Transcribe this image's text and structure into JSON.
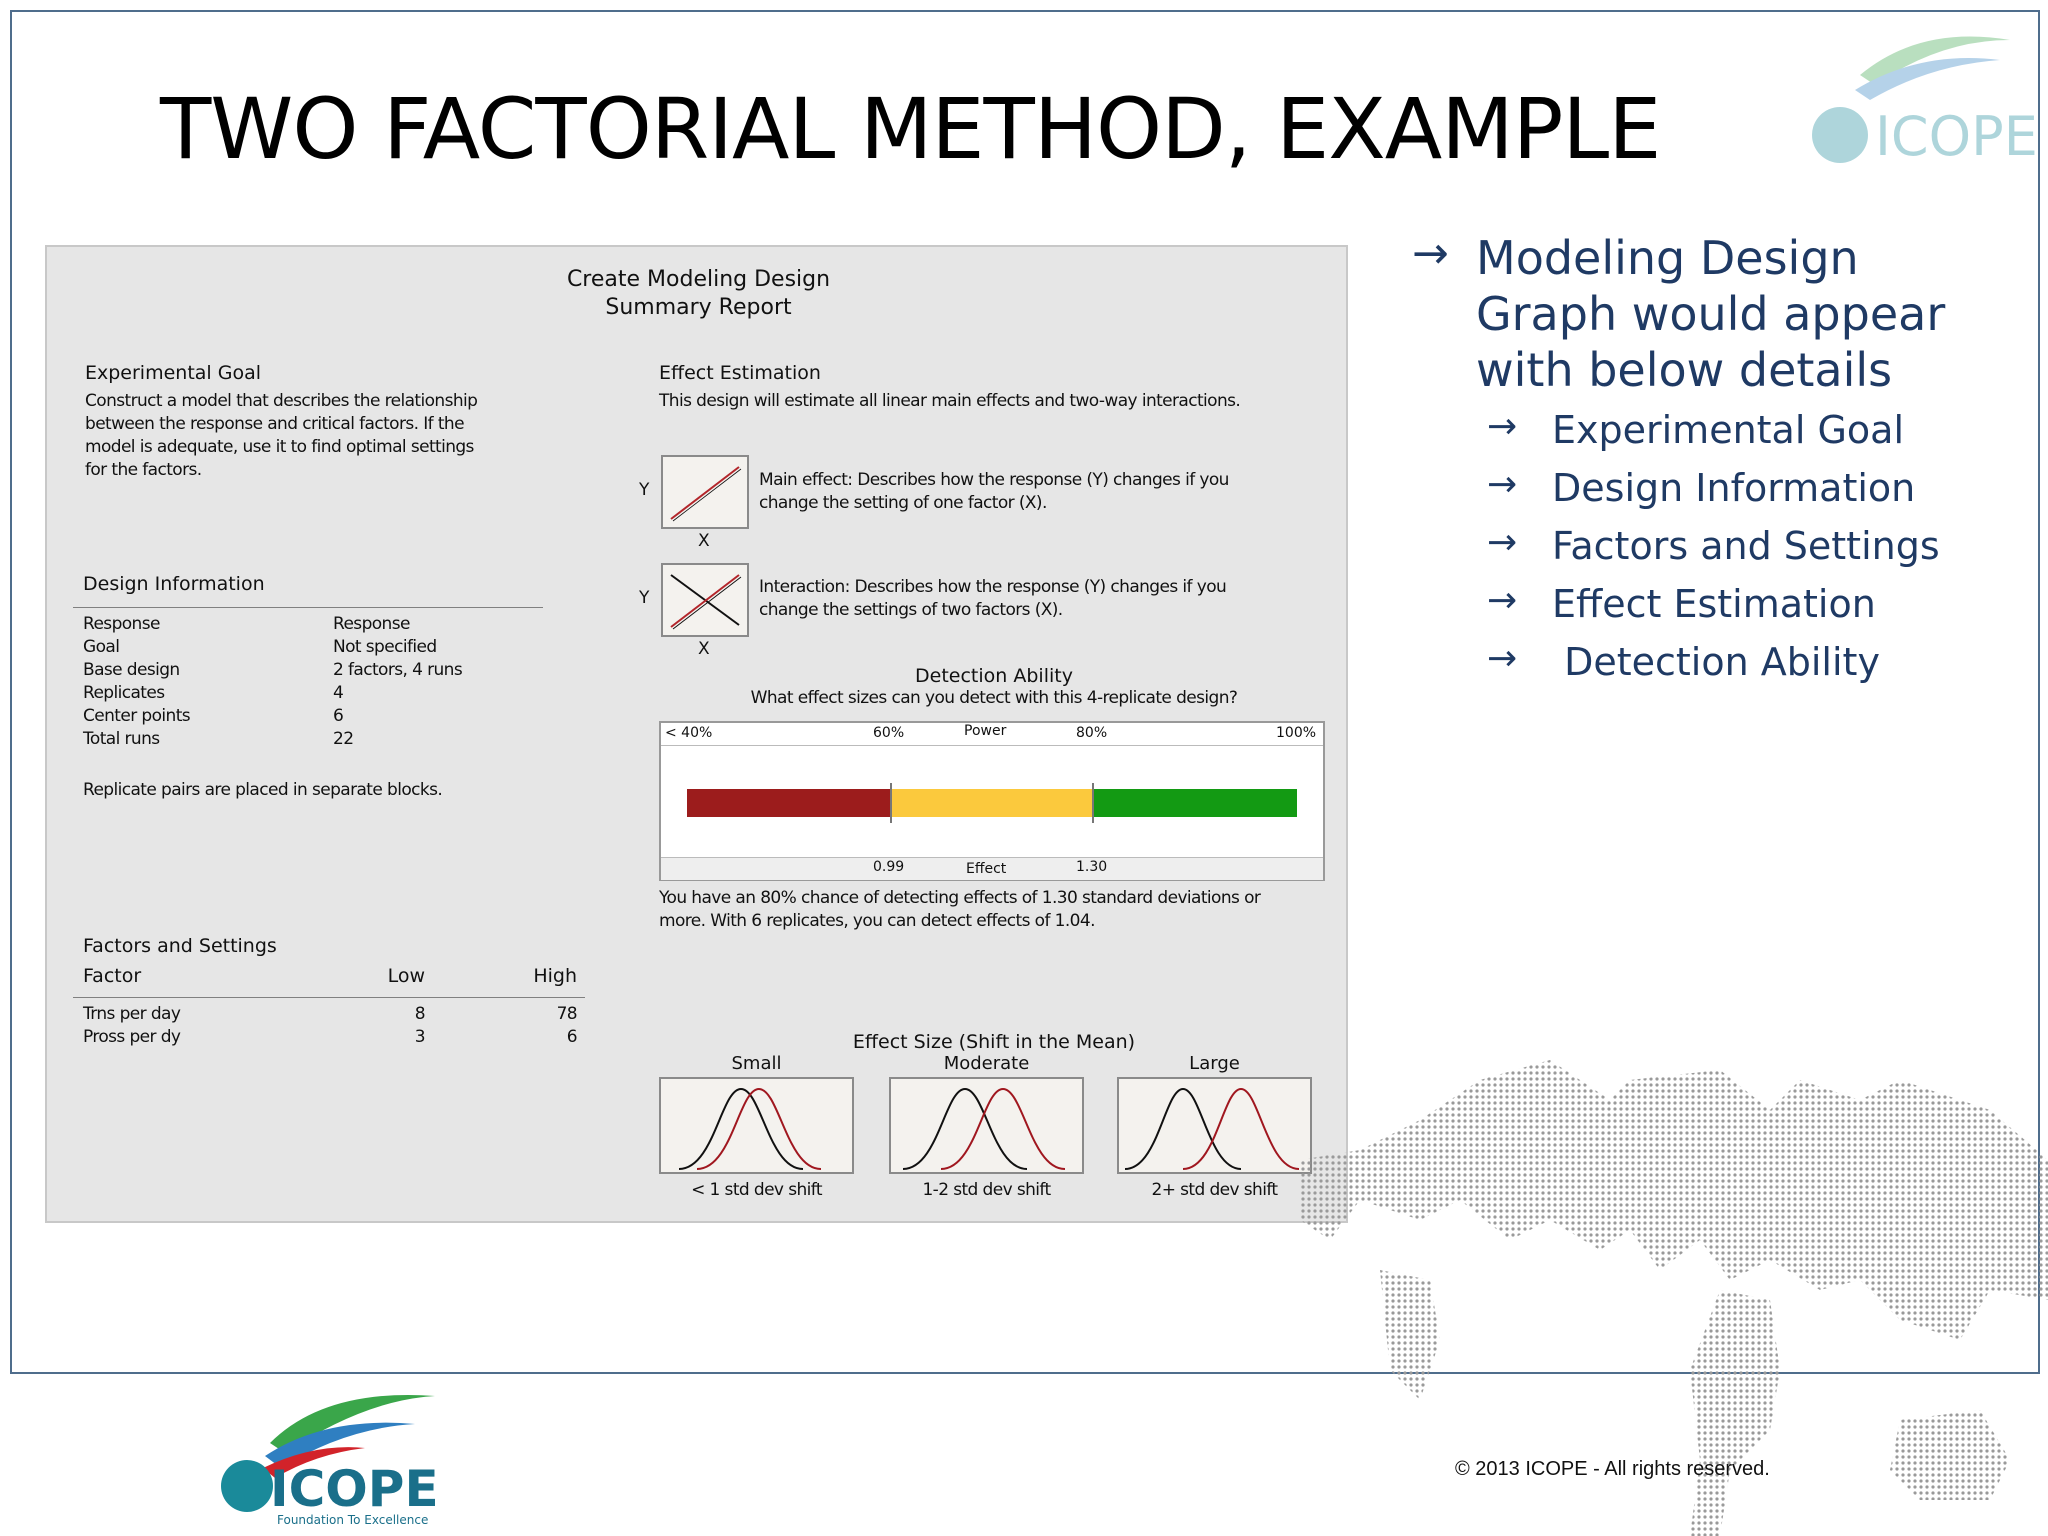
{
  "slide": {
    "title": "TWO FACTORIAL METHOD, EXAMPLE",
    "copyright": "©  2013 ICOPE - All rights reserved.",
    "logo": {
      "name": "ICOPE",
      "tagline": "Foundation To Excellence"
    }
  },
  "report": {
    "title_line1": "Create Modeling Design",
    "title_line2": "Summary Report",
    "experimental_goal": {
      "heading": "Experimental Goal",
      "lines": [
        "Construct a model that describes the relationship",
        "between the response and critical factors. If the",
        "model is adequate, use it to find optimal settings",
        "for the factors."
      ]
    },
    "design_information": {
      "heading": "Design Information",
      "rows": [
        {
          "label": "Response",
          "value": "Response"
        },
        {
          "label": "Goal",
          "value": "Not specified"
        },
        {
          "label": "Base design",
          "value": "2 factors, 4 runs"
        },
        {
          "label": "Replicates",
          "value": "4"
        },
        {
          "label": "Center points",
          "value": "6"
        },
        {
          "label": "Total runs",
          "value": "22"
        }
      ],
      "note": "Replicate pairs are placed in separate blocks."
    },
    "factors_settings": {
      "heading": "Factors and Settings",
      "columns": [
        "Factor",
        "Low",
        "High"
      ],
      "rows": [
        {
          "factor": "Trns per day",
          "low": "8",
          "high": "78"
        },
        {
          "factor": "Pross per dy",
          "low": "3",
          "high": "6"
        }
      ]
    },
    "effect_estimation": {
      "heading": "Effect Estimation",
      "text": "This design will estimate all linear main effects and two-way interactions.",
      "main_effect_lines": [
        "Main effect: Describes how the response (Y) changes if you",
        "change the setting of one factor (X)."
      ],
      "interaction_lines": [
        "Interaction: Describes how the response (Y) changes if you",
        "change the settings of two factors (X)."
      ],
      "axis_y": "Y",
      "axis_x": "X"
    },
    "detection_ability": {
      "heading": "Detection Ability",
      "question": "What effect sizes can you detect with this 4-replicate design?",
      "power_label": "Power",
      "power_ticks": [
        "< 40%",
        "60%",
        "80%",
        "100%"
      ],
      "effect_label": "Effect",
      "effect_ticks": [
        "0.99",
        "1.30"
      ],
      "colors": {
        "low": "#9c1c1c",
        "mid": "#fbc93d",
        "high": "#139a13"
      },
      "summary_lines": [
        "You have an 80% chance of detecting effects of 1.30 standard deviations or",
        "more. With 6 replicates, you can detect effects of 1.04."
      ]
    },
    "effect_size": {
      "heading": "Effect Size (Shift in the Mean)",
      "panels": [
        {
          "title": "Small",
          "caption": "< 1 std dev shift"
        },
        {
          "title": "Moderate",
          "caption": "1-2 std dev shift"
        },
        {
          "title": "Large",
          "caption": "2+ std dev shift"
        }
      ]
    }
  },
  "bullets": {
    "main_lines": [
      "Modeling Design",
      "Graph would appear",
      "with below details"
    ],
    "items": [
      "Experimental Goal",
      "Design Information",
      "Factors and Settings",
      "Effect Estimation",
      " Detection Ability"
    ]
  }
}
